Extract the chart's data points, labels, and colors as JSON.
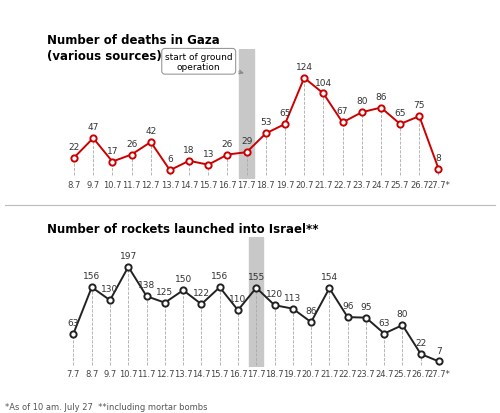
{
  "deaths_labels": [
    "8.7",
    "9.7",
    "10.7",
    "11.7",
    "12.7",
    "13.7",
    "14.7",
    "15.7",
    "16.7",
    "17.7",
    "18.7",
    "19.7",
    "20.7",
    "21.7",
    "22.7",
    "23.7",
    "24.7",
    "25.7",
    "26.7",
    "27.7*"
  ],
  "deaths_values": [
    22,
    47,
    17,
    26,
    42,
    6,
    18,
    13,
    26,
    29,
    53,
    65,
    124,
    104,
    67,
    80,
    86,
    65,
    75,
    8
  ],
  "rockets_labels": [
    "7.7",
    "8.7",
    "9.7",
    "10.7",
    "11.7",
    "12.7",
    "13.7",
    "14.7",
    "15.7",
    "16.7",
    "17.7",
    "18.7",
    "19.7",
    "20.7",
    "21.7",
    "22.7",
    "23.7",
    "24.7",
    "25.7",
    "26.7",
    "27.7*"
  ],
  "rockets_values": [
    63,
    156,
    130,
    197,
    138,
    125,
    150,
    122,
    156,
    110,
    155,
    120,
    113,
    86,
    154,
    96,
    95,
    63,
    80,
    22,
    7
  ],
  "ground_op_index_deaths": 9,
  "ground_op_index_rockets": 10,
  "deaths_line_color": "#cc0000",
  "rockets_line_color": "#222222",
  "ground_shade_color": "#c8c8c8",
  "title_deaths": "Number of deaths in Gaza\n(various sources):",
  "title_rockets": "Number of rockets launched into Israel**",
  "footnote": "*As of 10 am. July 27  **including mortar bombs",
  "callout_text": "start of ground\noperation"
}
